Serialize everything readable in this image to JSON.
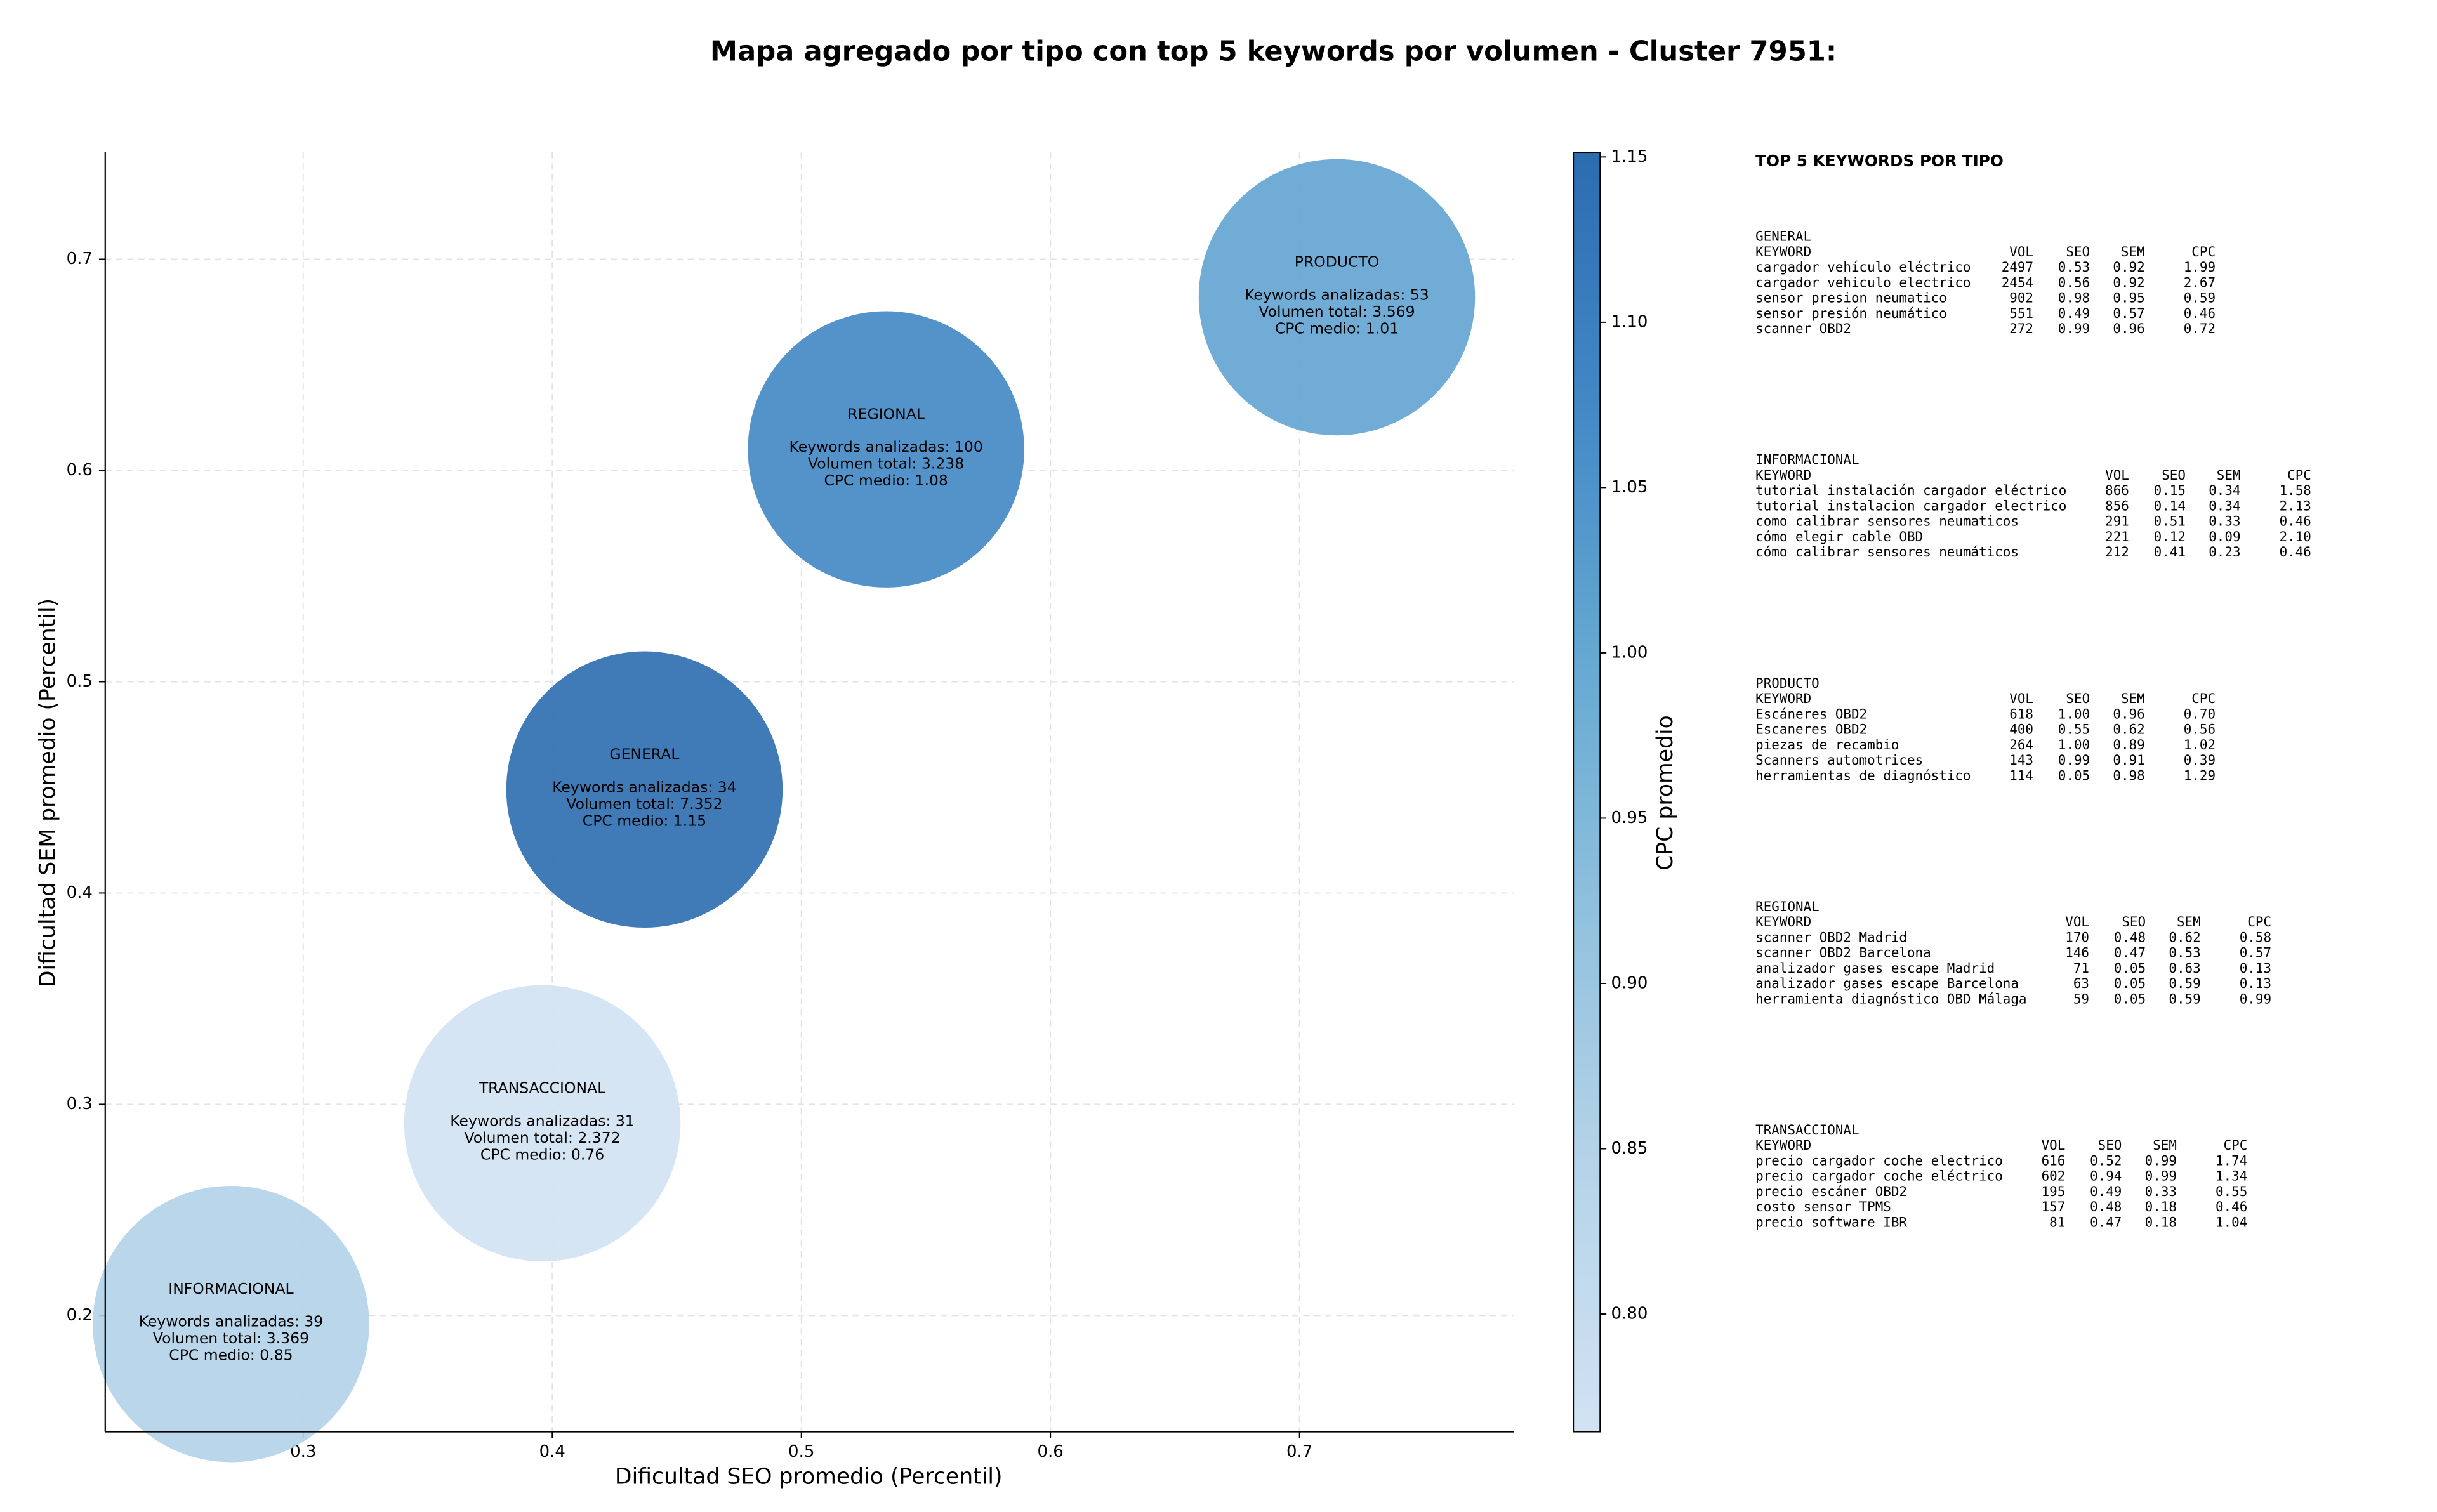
{
  "chart_data": {
    "type": "bubble",
    "title": "Mapa agregado por tipo con top 5 keywords por volumen - Cluster 7951:",
    "x_label": "Dificultad SEO promedio (Percentil)",
    "y_label": "Dificultad SEM promedio (Percentil)",
    "xlim": [
      0.2205,
      0.786
    ],
    "ylim": [
      0.145,
      0.7506
    ],
    "xticks": [
      0.3,
      0.4,
      0.5,
      0.6,
      0.7
    ],
    "yticks": [
      0.2,
      0.3,
      0.4,
      0.5,
      0.6,
      0.7
    ],
    "grid": true,
    "points": [
      {
        "name": "GENERAL",
        "x": 0.437,
        "y": 0.449,
        "cpc": 1.15,
        "lines": [
          "Keywords analizadas: 34",
          "Volumen total: 7.352",
          "CPC medio: 1.15"
        ]
      },
      {
        "name": "REGIONAL",
        "x": 0.534,
        "y": 0.61,
        "cpc": 1.08,
        "lines": [
          "Keywords analizadas: 100",
          "Volumen total: 3.238",
          "CPC medio: 1.08"
        ]
      },
      {
        "name": "PRODUCTO",
        "x": 0.715,
        "y": 0.682,
        "cpc": 1.01,
        "lines": [
          "Keywords analizadas: 53",
          "Volumen total: 3.569",
          "CPC medio: 1.01"
        ]
      },
      {
        "name": "TRANSACCIONAL",
        "x": 0.396,
        "y": 0.291,
        "cpc": 0.76,
        "lines": [
          "Keywords analizadas: 31",
          "Volumen total: 2.372",
          "CPC medio: 0.76"
        ]
      },
      {
        "name": "INFORMACIONAL",
        "x": 0.271,
        "y": 0.196,
        "cpc": 0.85,
        "lines": [
          "Keywords analizadas: 39",
          "Volumen total: 3.369",
          "CPC medio: 0.85"
        ]
      }
    ],
    "colorbar": {
      "label": "CPC promedio",
      "lim": [
        0.7644,
        1.1514
      ],
      "ticks": [
        {
          "value": 0.8,
          "label": "0.80"
        },
        0.85,
        {
          "value": 0.9,
          "label": "0.90"
        },
        0.95,
        {
          "value": 1.0,
          "label": "1.00"
        },
        1.05,
        {
          "value": 1.1,
          "label": "1.10"
        },
        1.15
      ],
      "colors": [
        "#d1e2f3",
        "#b6d4e9",
        "#92c1de",
        "#66a9d2",
        "#4389c6",
        "#2b6cb0"
      ]
    },
    "side_panel": {
      "title": "TOP 5 KEYWORDS POR TIPO",
      "header": [
        "KEYWORD",
        "VOL",
        "SEO",
        "SEM",
        "CPC"
      ],
      "groups": [
        {
          "name": "GENERAL",
          "rows": [
            [
              "cargador vehículo eléctrico",
              "2497",
              "0.53",
              "0.92",
              "1.99"
            ],
            [
              "cargador vehiculo electrico",
              "2454",
              "0.56",
              "0.92",
              "2.67"
            ],
            [
              "sensor presion neumatico",
              "902",
              "0.98",
              "0.95",
              "0.59"
            ],
            [
              "sensor presión neumático",
              "551",
              "0.49",
              "0.57",
              "0.46"
            ],
            [
              "scanner OBD2",
              "272",
              "0.99",
              "0.96",
              "0.72"
            ]
          ]
        },
        {
          "name": "INFORMACIONAL",
          "rows": [
            [
              "tutorial instalación cargador eléctrico",
              "866",
              "0.15",
              "0.34",
              "1.58"
            ],
            [
              "tutorial instalacion cargador electrico",
              "856",
              "0.14",
              "0.34",
              "2.13"
            ],
            [
              "como calibrar sensores neumaticos",
              "291",
              "0.51",
              "0.33",
              "0.46"
            ],
            [
              "cómo elegir cable OBD",
              "221",
              "0.12",
              "0.09",
              "2.10"
            ],
            [
              "cómo calibrar sensores neumáticos",
              "212",
              "0.41",
              "0.23",
              "0.46"
            ]
          ]
        },
        {
          "name": "PRODUCTO",
          "rows": [
            [
              "Escáneres OBD2",
              "618",
              "1.00",
              "0.96",
              "0.70"
            ],
            [
              "Escaneres OBD2",
              "400",
              "0.55",
              "0.62",
              "0.56"
            ],
            [
              "piezas de recambio",
              "264",
              "1.00",
              "0.89",
              "1.02"
            ],
            [
              "Scanners automotrices",
              "143",
              "0.99",
              "0.91",
              "0.39"
            ],
            [
              "herramientas de diagnóstico",
              "114",
              "0.05",
              "0.98",
              "1.29"
            ]
          ]
        },
        {
          "name": "REGIONAL",
          "rows": [
            [
              "scanner OBD2 Madrid",
              "170",
              "0.48",
              "0.62",
              "0.58"
            ],
            [
              "scanner OBD2 Barcelona",
              "146",
              "0.47",
              "0.53",
              "0.57"
            ],
            [
              "analizador gases escape Madrid",
              "71",
              "0.05",
              "0.63",
              "0.13"
            ],
            [
              "analizador gases escape Barcelona",
              "63",
              "0.05",
              "0.59",
              "0.13"
            ],
            [
              "herramienta diagnóstico OBD Málaga",
              "59",
              "0.05",
              "0.59",
              "0.99"
            ]
          ]
        },
        {
          "name": "TRANSACCIONAL",
          "rows": [
            [
              "precio cargador coche electrico",
              "616",
              "0.52",
              "0.99",
              "1.74"
            ],
            [
              "precio cargador coche eléctrico",
              "602",
              "0.94",
              "0.99",
              "1.34"
            ],
            [
              "precio escáner OBD2",
              "195",
              "0.49",
              "0.33",
              "0.55"
            ],
            [
              "costo sensor TPMS",
              "157",
              "0.48",
              "0.18",
              "0.46"
            ],
            [
              "precio software IBR",
              "81",
              "0.47",
              "0.18",
              "1.04"
            ]
          ]
        }
      ]
    }
  }
}
